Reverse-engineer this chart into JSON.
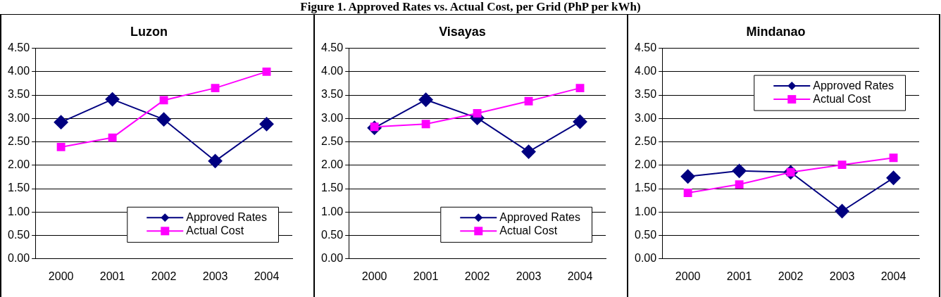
{
  "chart_data": [
    {
      "type": "line",
      "title": "Luzon",
      "categories": [
        "2000",
        "2001",
        "2002",
        "2003",
        "2004"
      ],
      "ylim": [
        0,
        4.5
      ],
      "yticks": [
        {
          "value": 0,
          "label": "0.00"
        },
        {
          "value": 0.5,
          "label": "0.50"
        },
        {
          "value": 1,
          "label": "1.00"
        },
        {
          "value": 1.5,
          "label": "1.50"
        },
        {
          "value": 2,
          "label": "2.00"
        },
        {
          "value": 2.5,
          "label": "2.50"
        },
        {
          "value": 3,
          "label": "3.00"
        },
        {
          "value": 3.5,
          "label": "3.50"
        },
        {
          "value": 4,
          "label": "4.00"
        },
        {
          "value": 4.5,
          "label": "4.50"
        }
      ],
      "grid": "y",
      "legend": "bottom right",
      "annotations": [
        "Figure 1. Approved Rates vs. Actual Cost, per Grid (PhP per kWh)"
      ],
      "series": [
        {
          "name": "Approved Rates",
          "color": "#000080",
          "marker": "diamond",
          "values": [
            2.92,
            3.41,
            2.98,
            2.09,
            2.88
          ]
        },
        {
          "name": "Actual Cost",
          "color": "#ff00ff",
          "marker": "square",
          "values": [
            2.39,
            2.59,
            3.39,
            3.65,
            4.0
          ]
        }
      ]
    },
    {
      "type": "line",
      "title": "Visayas",
      "categories": [
        "2000",
        "2001",
        "2002",
        "2003",
        "2004"
      ],
      "ylim": [
        0,
        4.5
      ],
      "yticks": [
        {
          "value": 0,
          "label": "0.00"
        },
        {
          "value": 0.5,
          "label": "0.50"
        },
        {
          "value": 1,
          "label": "1.00"
        },
        {
          "value": 1.5,
          "label": "1.50"
        },
        {
          "value": 2,
          "label": "2.00"
        },
        {
          "value": 2.5,
          "label": "2.50"
        },
        {
          "value": 3,
          "label": "3.00"
        },
        {
          "value": 3.5,
          "label": "3.50"
        },
        {
          "value": 4,
          "label": "4.00"
        },
        {
          "value": 4.5,
          "label": "4.50"
        }
      ],
      "grid": "y",
      "legend": "bottom right",
      "series": [
        {
          "name": "Approved Rates",
          "color": "#000080",
          "marker": "diamond",
          "values": [
            2.8,
            3.4,
            3.01,
            2.29,
            2.93
          ]
        },
        {
          "name": "Actual Cost",
          "color": "#ff00ff",
          "marker": "square",
          "values": [
            2.82,
            2.88,
            3.11,
            3.37,
            3.65
          ]
        }
      ]
    },
    {
      "type": "line",
      "title": "Mindanao",
      "categories": [
        "2000",
        "2001",
        "2002",
        "2003",
        "2004"
      ],
      "ylim": [
        0,
        4.5
      ],
      "yticks": [
        {
          "value": 0,
          "label": "0.00"
        },
        {
          "value": 0.5,
          "label": "0.50"
        },
        {
          "value": 1,
          "label": "1.00"
        },
        {
          "value": 1.5,
          "label": "1.50"
        },
        {
          "value": 2,
          "label": "2.00"
        },
        {
          "value": 2.5,
          "label": "2.50"
        },
        {
          "value": 3,
          "label": "3.00"
        },
        {
          "value": 3.5,
          "label": "3.50"
        },
        {
          "value": 4,
          "label": "4.00"
        },
        {
          "value": 4.5,
          "label": "4.50"
        }
      ],
      "grid": "y",
      "legend": "top right",
      "series": [
        {
          "name": "Approved Rates",
          "color": "#000080",
          "marker": "diamond",
          "values": [
            1.76,
            1.88,
            1.85,
            1.02,
            1.73
          ]
        },
        {
          "name": "Actual Cost",
          "color": "#ff00ff",
          "marker": "square",
          "values": [
            1.41,
            1.59,
            1.85,
            2.01,
            2.16
          ]
        }
      ]
    }
  ]
}
